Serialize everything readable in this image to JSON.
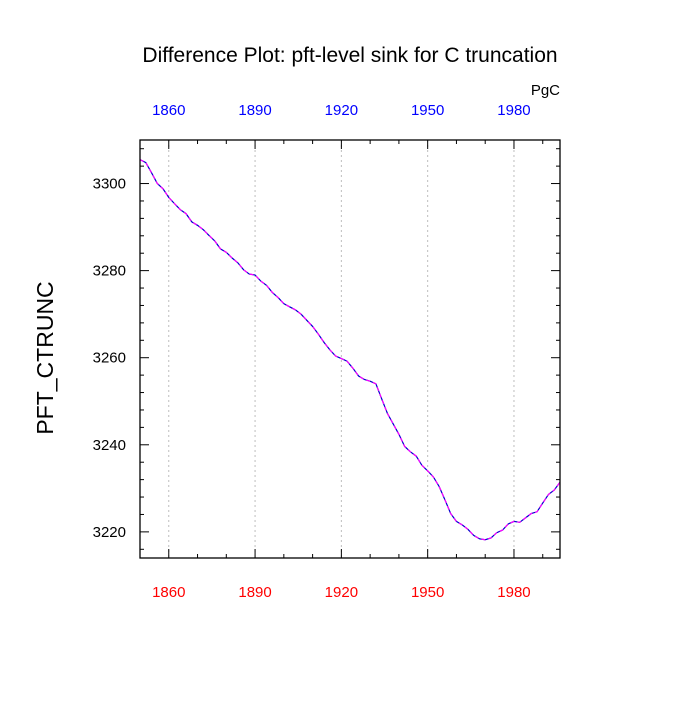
{
  "chart_data": {
    "type": "line",
    "title": "Difference Plot: pft-level sink for C truncation",
    "ylabel": "PFT_CTRUNC",
    "units": "PgC",
    "xlim": [
      1850,
      1996
    ],
    "ylim": [
      3214,
      3310
    ],
    "x_ticks": [
      1860,
      1890,
      1920,
      1950,
      1980
    ],
    "y_ticks": [
      3220,
      3240,
      3260,
      3280,
      3300
    ],
    "grid_x": true,
    "colors": {
      "top_tick_labels": "#0000ff",
      "bottom_tick_labels": "#ff0000",
      "series_a": "#0000cc",
      "series_b": "#ff00ff",
      "grid": "#bdbdbd"
    },
    "series": [
      {
        "x": [
          1850,
          1852,
          1854,
          1856,
          1858,
          1860,
          1862,
          1864,
          1866,
          1868,
          1870,
          1872,
          1874,
          1876,
          1878,
          1880,
          1882,
          1884,
          1886,
          1888,
          1890,
          1892,
          1894,
          1896,
          1898,
          1900,
          1902,
          1904,
          1906,
          1908,
          1910,
          1912,
          1914,
          1916,
          1918,
          1920,
          1922,
          1924,
          1926,
          1928,
          1930,
          1932,
          1934,
          1936,
          1938,
          1940,
          1942,
          1944,
          1946,
          1948,
          1950,
          1952,
          1954,
          1956,
          1958,
          1960,
          1962,
          1964,
          1966,
          1968,
          1970,
          1972,
          1974,
          1976,
          1978,
          1980,
          1982,
          1984,
          1986,
          1988,
          1990,
          1992,
          1994,
          1996
        ],
        "values": [
          3305.5,
          3304.8,
          3302.5,
          3300.0,
          3298.8,
          3296.8,
          3295.4,
          3294.0,
          3293.1,
          3291.2,
          3290.4,
          3289.4,
          3288.1,
          3286.8,
          3285.0,
          3284.2,
          3282.9,
          3281.8,
          3280.2,
          3279.2,
          3279.0,
          3277.6,
          3276.6,
          3275.0,
          3273.8,
          3272.4,
          3271.7,
          3271.0,
          3270.0,
          3268.6,
          3267.2,
          3265.4,
          3263.5,
          3261.8,
          3260.4,
          3259.8,
          3259.2,
          3257.6,
          3255.8,
          3255.0,
          3254.6,
          3254.0,
          3250.6,
          3247.2,
          3244.8,
          3242.4,
          3239.6,
          3238.4,
          3237.4,
          3235.3,
          3234.0,
          3232.6,
          3230.4,
          3227.4,
          3224.2,
          3222.4,
          3221.6,
          3220.6,
          3219.2,
          3218.4,
          3218.2,
          3218.6,
          3219.8,
          3220.4,
          3221.8,
          3222.4,
          3222.2,
          3223.2,
          3224.2,
          3224.6,
          3226.6,
          3228.6,
          3229.6,
          3231.4
        ]
      },
      {
        "x": [
          1850,
          1852,
          1854,
          1856,
          1858,
          1860,
          1862,
          1864,
          1866,
          1868,
          1870,
          1872,
          1874,
          1876,
          1878,
          1880,
          1882,
          1884,
          1886,
          1888,
          1890,
          1892,
          1894,
          1896,
          1898,
          1900,
          1902,
          1904,
          1906,
          1908,
          1910,
          1912,
          1914,
          1916,
          1918,
          1920,
          1922,
          1924,
          1926,
          1928,
          1930,
          1932,
          1934,
          1936,
          1938,
          1940,
          1942,
          1944,
          1946,
          1948,
          1950,
          1952,
          1954,
          1956,
          1958,
          1960,
          1962,
          1964,
          1966,
          1968,
          1970,
          1972,
          1974,
          1976,
          1978,
          1980,
          1982,
          1984,
          1986,
          1988,
          1990,
          1992,
          1994,
          1996
        ],
        "values": [
          3305.5,
          3304.8,
          3302.5,
          3300.0,
          3298.8,
          3296.8,
          3295.4,
          3294.0,
          3293.1,
          3291.2,
          3290.4,
          3289.4,
          3288.1,
          3286.8,
          3285.0,
          3284.2,
          3282.9,
          3281.8,
          3280.2,
          3279.2,
          3279.0,
          3277.6,
          3276.6,
          3275.0,
          3273.8,
          3272.4,
          3271.7,
          3271.0,
          3270.0,
          3268.6,
          3267.2,
          3265.4,
          3263.5,
          3261.8,
          3260.4,
          3259.8,
          3259.2,
          3257.6,
          3255.8,
          3255.0,
          3254.6,
          3254.0,
          3250.6,
          3247.2,
          3244.8,
          3242.4,
          3239.6,
          3238.4,
          3237.4,
          3235.3,
          3234.0,
          3232.6,
          3230.4,
          3227.4,
          3224.2,
          3222.4,
          3221.6,
          3220.6,
          3219.2,
          3218.4,
          3218.2,
          3218.6,
          3219.8,
          3220.4,
          3221.8,
          3222.4,
          3222.2,
          3223.2,
          3224.2,
          3224.6,
          3226.6,
          3228.6,
          3229.6,
          3231.4
        ]
      }
    ]
  }
}
